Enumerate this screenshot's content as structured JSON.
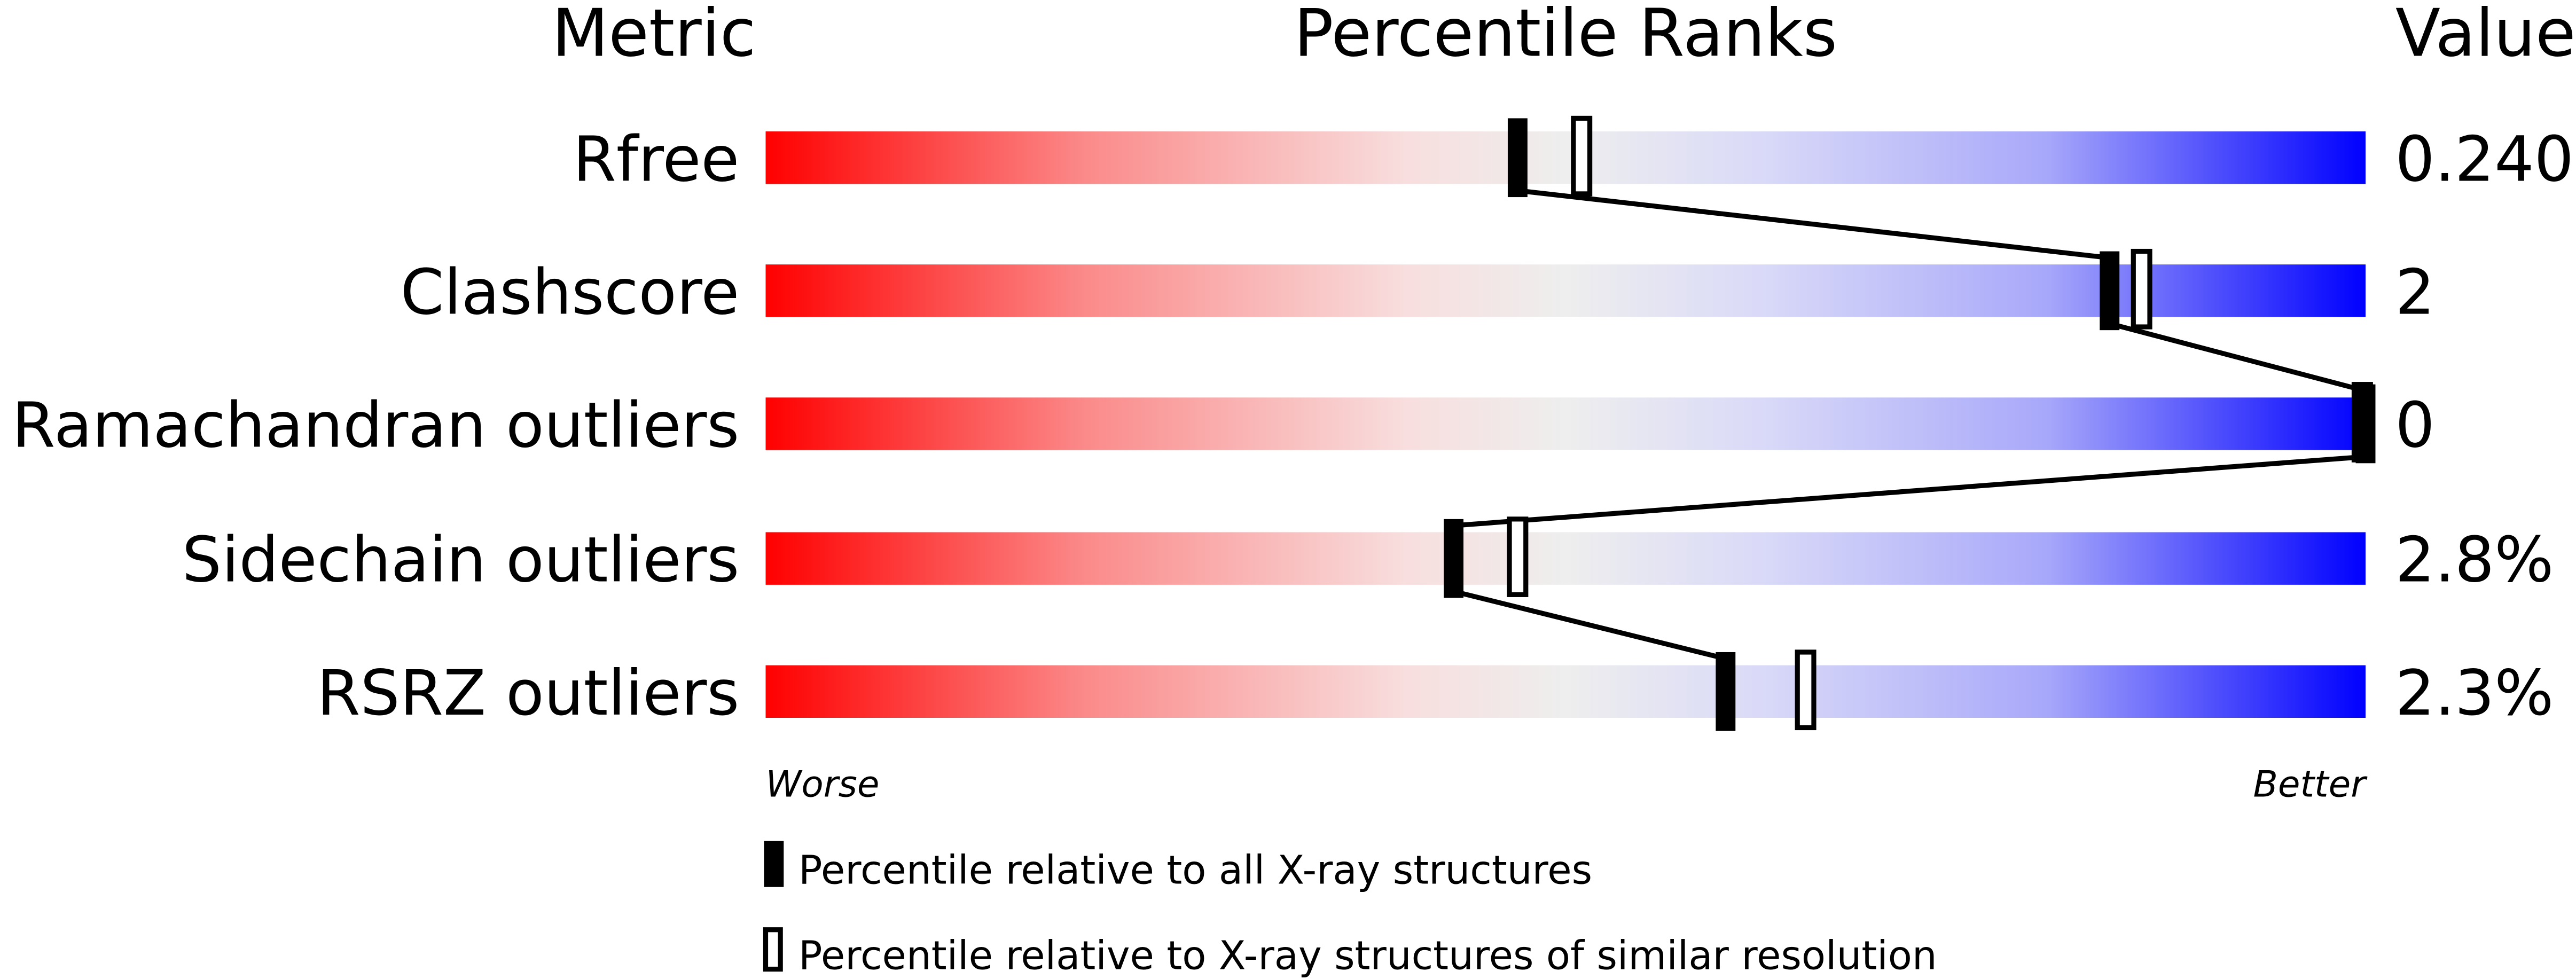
{
  "chart_data": {
    "type": "percentile-slider",
    "headers": {
      "metric": "Metric",
      "ranks": "Percentile Ranks",
      "value": "Value"
    },
    "xlim": [
      0,
      100
    ],
    "axis_labels": {
      "left": "Worse",
      "right": "Better"
    },
    "colors": {
      "worse": "#ff0000",
      "middle": "#eeeeee",
      "better": "#0000ff",
      "marker": "#000000"
    },
    "metrics": [
      {
        "name": "Rfree",
        "value": "0.240",
        "percentile_all": 47,
        "percentile_similar": 51
      },
      {
        "name": "Clashscore",
        "value": "2",
        "percentile_all": 84,
        "percentile_similar": 86
      },
      {
        "name": "Ramachandran outliers",
        "value": "0",
        "percentile_all": 100,
        "percentile_similar": 100
      },
      {
        "name": "Sidechain outliers",
        "value": "2.8%",
        "percentile_all": 43,
        "percentile_similar": 47
      },
      {
        "name": "RSRZ outliers",
        "value": "2.3%",
        "percentile_all": 60,
        "percentile_similar": 65
      }
    ],
    "legend": [
      {
        "marker": "filled",
        "label": "Percentile relative to all X-ray structures"
      },
      {
        "marker": "open",
        "label": "Percentile relative to X-ray structures of similar resolution"
      }
    ]
  }
}
